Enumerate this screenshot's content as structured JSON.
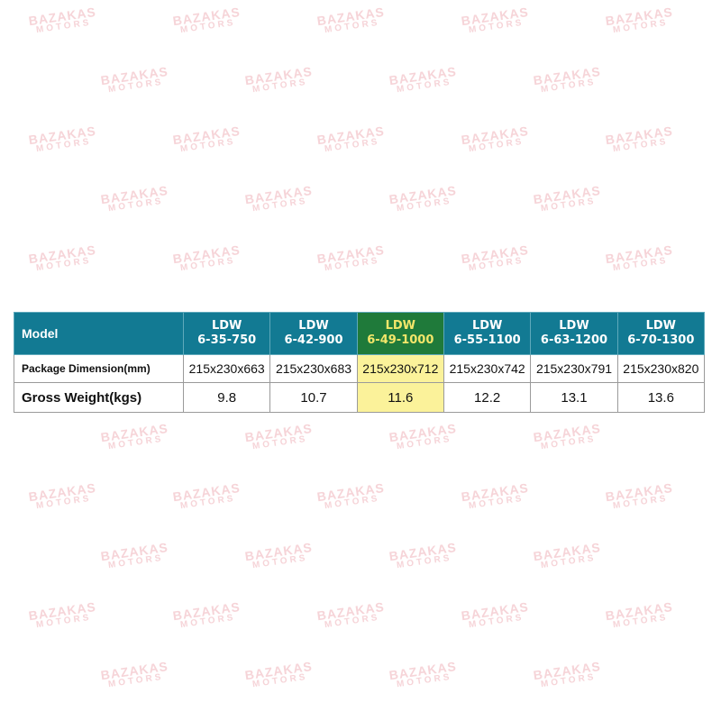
{
  "watermark": {
    "line1": "BAZAKAS",
    "line2": "MOTORS",
    "color": "#f6d4d8"
  },
  "table": {
    "header_label": "Model",
    "highlight_column": 2,
    "colors": {
      "header": "#127a93",
      "highlight_header": "#1f7a3a",
      "highlight_header_text": "#f3e66a",
      "highlight_cell": "#fbf29a"
    },
    "models": [
      {
        "line1": "LDW",
        "line2": "6-35-750"
      },
      {
        "line1": "LDW",
        "line2": "6-42-900"
      },
      {
        "line1": "LDW",
        "line2": "6-49-1000"
      },
      {
        "line1": "LDW",
        "line2": "6-55-1100"
      },
      {
        "line1": "LDW",
        "line2": "6-63-1200"
      },
      {
        "line1": "LDW",
        "line2": "6-70-1300"
      }
    ],
    "rows": [
      {
        "label": "Package Dimension(mm)",
        "values": [
          "215x230x663",
          "215x230x683",
          "215x230x712",
          "215x230x742",
          "215x230x791",
          "215x230x820"
        ]
      },
      {
        "label": "Gross Weight(kgs)",
        "values": [
          "9.8",
          "10.7",
          "11.6",
          "12.2",
          "13.1",
          "13.6"
        ]
      }
    ]
  }
}
